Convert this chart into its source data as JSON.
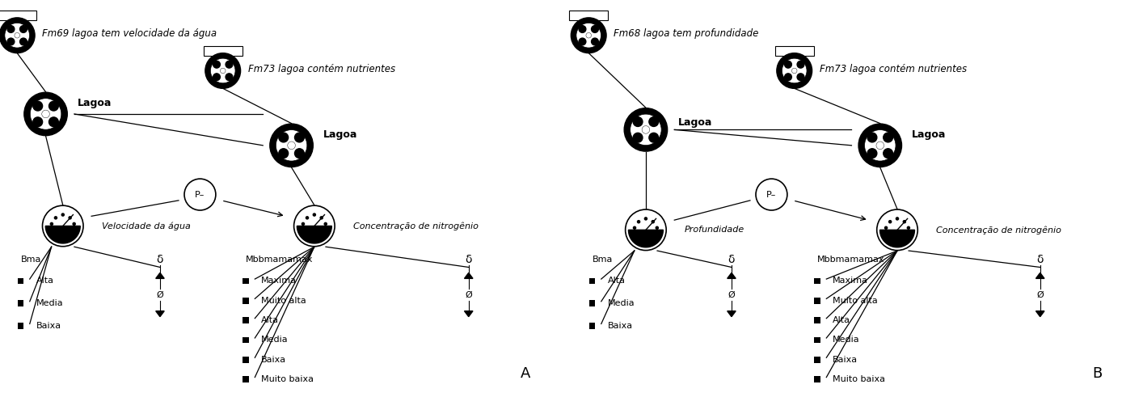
{
  "background_color": "#ffffff",
  "figsize": [
    14.14,
    4.86
  ],
  "dpi": 100,
  "panel_A": {
    "label": "A",
    "fm_top_left": "Fm69 lagoa tem velocidade da água",
    "fm_top_right": "Fm73 lagoa contém nutrientes",
    "lagoa_left_label": "Lagoa",
    "lagoa_right_label": "Lagoa",
    "vel_label": "Velocidade da água",
    "nit_label": "Concentração de nitrogênio",
    "p_label": "P–",
    "bma_label": "Bma",
    "bma_items": [
      "Alta",
      "Media",
      "Baixa"
    ],
    "mbb_label": "Mbbmamamax",
    "mbb_items": [
      "Maxima",
      "Muito alta",
      "Alta",
      "Media",
      "Baixa",
      "Muito baixa"
    ],
    "delta": "δ",
    "empty_set": "Ø"
  },
  "panel_B": {
    "label": "B",
    "fm_top_left": "Fm68 lagoa tem profundidade",
    "fm_top_right": "Fm73 lagoa contém nutrientes",
    "lagoa_left_label": "Lagoa",
    "lagoa_right_label": "Lagoa",
    "prof_label": "Profundidade",
    "nit_label": "Concentração de nitrogênio",
    "p_label": "P–",
    "bma_label": "Bma",
    "bma_items": [
      "Alta",
      "Media",
      "Baixa"
    ],
    "mbb_label": "Mbbmamamax",
    "mbb_items": [
      "Maxima",
      "Muito alta",
      "Alta",
      "Media",
      "Baixa",
      "Muito baixa"
    ],
    "delta": "δ",
    "empty_set": "Ø"
  }
}
